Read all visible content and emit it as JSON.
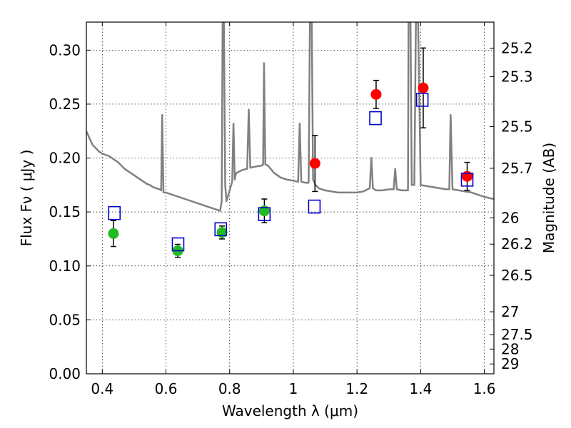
{
  "chart_data": {
    "type": "scatter",
    "xlabel": "Wavelength  λ (μm)",
    "ylabel": "Flux  Fν  ( μJy )",
    "ylabel_right": "Magnitude (AB)",
    "xlim": [
      0.35,
      1.63
    ],
    "ylim": [
      0.0,
      0.326
    ],
    "grid": true,
    "x_ticks": [
      0.4,
      0.6,
      0.8,
      1.0,
      1.2,
      1.4,
      1.6
    ],
    "x_tick_labels": [
      "0.4",
      "0.6",
      "0.8",
      "1",
      "1.2",
      "1.4",
      "1.6"
    ],
    "y_ticks": [
      0.0,
      0.05,
      0.1,
      0.15,
      0.2,
      0.25,
      0.3
    ],
    "y_tick_labels": [
      "0.00",
      "0.05",
      "0.10",
      "0.15",
      "0.20",
      "0.25",
      "0.30"
    ],
    "right_ticks": [
      {
        "label": "25.2",
        "flux": 0.3019
      },
      {
        "label": "25.3",
        "flux": 0.2754
      },
      {
        "label": "25.5",
        "flux": 0.2291
      },
      {
        "label": "25.7",
        "flux": 0.1905
      },
      {
        "label": "26",
        "flux": 0.1445
      },
      {
        "label": "26.2",
        "flux": 0.1202
      },
      {
        "label": "26.5",
        "flux": 0.0912
      },
      {
        "label": "27",
        "flux": 0.0575
      },
      {
        "label": "27.5",
        "flux": 0.0363
      },
      {
        "label": "28",
        "flux": 0.0229
      },
      {
        "label": "29",
        "flux": 0.0091
      }
    ],
    "series": [
      {
        "kind": "spectrum",
        "color": "#808080",
        "points": [
          [
            0.35,
            0.225
          ],
          [
            0.36,
            0.218
          ],
          [
            0.37,
            0.212
          ],
          [
            0.38,
            0.209
          ],
          [
            0.39,
            0.206
          ],
          [
            0.4,
            0.204
          ],
          [
            0.41,
            0.203
          ],
          [
            0.42,
            0.202
          ],
          [
            0.43,
            0.2
          ],
          [
            0.44,
            0.198
          ],
          [
            0.45,
            0.196
          ],
          [
            0.46,
            0.193
          ],
          [
            0.47,
            0.19
          ],
          [
            0.48,
            0.188
          ],
          [
            0.49,
            0.186
          ],
          [
            0.5,
            0.184
          ],
          [
            0.51,
            0.182
          ],
          [
            0.52,
            0.18
          ],
          [
            0.53,
            0.178
          ],
          [
            0.54,
            0.176
          ],
          [
            0.55,
            0.175
          ],
          [
            0.56,
            0.173
          ],
          [
            0.57,
            0.172
          ],
          [
            0.58,
            0.171
          ],
          [
            0.585,
            0.17
          ],
          [
            0.588,
            0.24
          ],
          [
            0.592,
            0.168
          ],
          [
            0.6,
            0.168
          ],
          [
            0.62,
            0.166
          ],
          [
            0.64,
            0.164
          ],
          [
            0.66,
            0.162
          ],
          [
            0.68,
            0.16
          ],
          [
            0.7,
            0.158
          ],
          [
            0.72,
            0.156
          ],
          [
            0.74,
            0.154
          ],
          [
            0.76,
            0.152
          ],
          [
            0.77,
            0.151
          ],
          [
            0.775,
            0.16
          ],
          [
            0.778,
            0.326
          ],
          [
            0.782,
            0.326
          ],
          [
            0.786,
            0.175
          ],
          [
            0.79,
            0.16
          ],
          [
            0.8,
            0.17
          ],
          [
            0.808,
            0.178
          ],
          [
            0.812,
            0.232
          ],
          [
            0.816,
            0.18
          ],
          [
            0.82,
            0.186
          ],
          [
            0.84,
            0.189
          ],
          [
            0.855,
            0.19
          ],
          [
            0.86,
            0.245
          ],
          [
            0.865,
            0.191
          ],
          [
            0.88,
            0.192
          ],
          [
            0.9,
            0.193
          ],
          [
            0.905,
            0.194
          ],
          [
            0.908,
            0.288
          ],
          [
            0.912,
            0.194
          ],
          [
            0.92,
            0.193
          ],
          [
            0.94,
            0.186
          ],
          [
            0.96,
            0.182
          ],
          [
            0.98,
            0.18
          ],
          [
            1.0,
            0.179
          ],
          [
            1.015,
            0.178
          ],
          [
            1.02,
            0.232
          ],
          [
            1.025,
            0.178
          ],
          [
            1.04,
            0.177
          ],
          [
            1.048,
            0.177
          ],
          [
            1.052,
            0.326
          ],
          [
            1.058,
            0.326
          ],
          [
            1.062,
            0.18
          ],
          [
            1.07,
            0.175
          ],
          [
            1.08,
            0.172
          ],
          [
            1.1,
            0.17
          ],
          [
            1.12,
            0.169
          ],
          [
            1.14,
            0.168
          ],
          [
            1.16,
            0.168
          ],
          [
            1.18,
            0.168
          ],
          [
            1.2,
            0.168
          ],
          [
            1.22,
            0.169
          ],
          [
            1.24,
            0.172
          ],
          [
            1.245,
            0.2
          ],
          [
            1.25,
            0.172
          ],
          [
            1.26,
            0.17
          ],
          [
            1.28,
            0.17
          ],
          [
            1.3,
            0.171
          ],
          [
            1.315,
            0.171
          ],
          [
            1.32,
            0.19
          ],
          [
            1.325,
            0.171
          ],
          [
            1.34,
            0.17
          ],
          [
            1.36,
            0.17
          ],
          [
            1.362,
            0.326
          ],
          [
            1.368,
            0.326
          ],
          [
            1.372,
            0.175
          ],
          [
            1.38,
            0.175
          ],
          [
            1.385,
            0.326
          ],
          [
            1.392,
            0.326
          ],
          [
            1.4,
            0.175
          ],
          [
            1.42,
            0.174
          ],
          [
            1.44,
            0.173
          ],
          [
            1.46,
            0.172
          ],
          [
            1.48,
            0.171
          ],
          [
            1.49,
            0.171
          ],
          [
            1.494,
            0.24
          ],
          [
            1.5,
            0.171
          ],
          [
            1.52,
            0.17
          ],
          [
            1.54,
            0.169
          ],
          [
            1.56,
            0.168
          ],
          [
            1.58,
            0.166
          ],
          [
            1.6,
            0.164
          ],
          [
            1.63,
            0.162
          ]
        ]
      },
      {
        "kind": "markers",
        "marker": "circle",
        "color": "#22bb22",
        "points": [
          {
            "x": 0.435,
            "y": 0.13,
            "err": 0.012
          },
          {
            "x": 0.637,
            "y": 0.114,
            "err": 0.006
          },
          {
            "x": 0.776,
            "y": 0.131,
            "err": 0.006
          },
          {
            "x": 0.909,
            "y": 0.151,
            "err": 0.011
          }
        ]
      },
      {
        "kind": "markers",
        "marker": "circle",
        "color": "#ff0000",
        "points": [
          {
            "x": 1.068,
            "y": 0.195,
            "err": 0.026
          },
          {
            "x": 1.26,
            "y": 0.259,
            "err": 0.013
          },
          {
            "x": 1.408,
            "y": 0.265,
            "err": 0.037
          },
          {
            "x": 1.546,
            "y": 0.183,
            "err": 0.013
          }
        ]
      },
      {
        "kind": "markers",
        "marker": "open-square",
        "color": "#0000cc",
        "points": [
          {
            "x": 0.438,
            "y": 0.149
          },
          {
            "x": 0.638,
            "y": 0.12
          },
          {
            "x": 0.772,
            "y": 0.134
          },
          {
            "x": 0.909,
            "y": 0.148
          },
          {
            "x": 1.066,
            "y": 0.155
          },
          {
            "x": 1.258,
            "y": 0.237
          },
          {
            "x": 1.405,
            "y": 0.254
          },
          {
            "x": 1.546,
            "y": 0.18
          }
        ]
      }
    ]
  }
}
